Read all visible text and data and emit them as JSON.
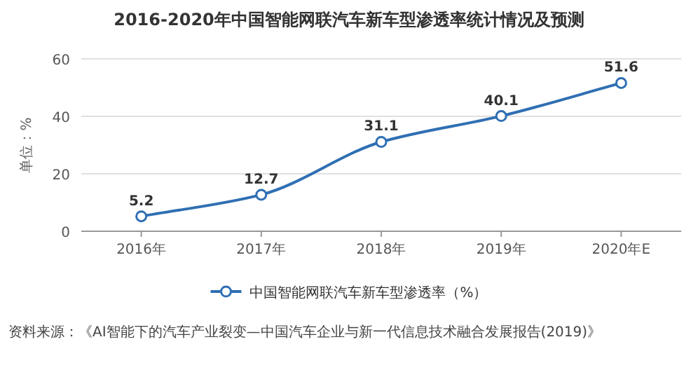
{
  "chart_data": {
    "type": "line",
    "title": "2016-2020年中国智能网联汽车新车型渗透率统计情况及预测",
    "ylabel": "单位：%",
    "categories": [
      "2016年",
      "2017年",
      "2018年",
      "2019年",
      "2020年E"
    ],
    "series": [
      {
        "name": "中国智能网联汽车新车型渗透率（%）",
        "color": "#2f6fb3",
        "values": [
          5.2,
          12.7,
          31.1,
          40.1,
          51.6
        ]
      }
    ],
    "ylim": [
      0,
      60
    ],
    "yticks": [
      0,
      20,
      40,
      60
    ],
    "grid": "y",
    "legend": "bottom",
    "marker": "circle",
    "line_style": "solid",
    "data_labels": true,
    "annotations": [
      "资料来源：《AI智能下的汽车产业裂变—中国汽车企业与新一代信息技术融合发展报告(2019)》"
    ]
  }
}
